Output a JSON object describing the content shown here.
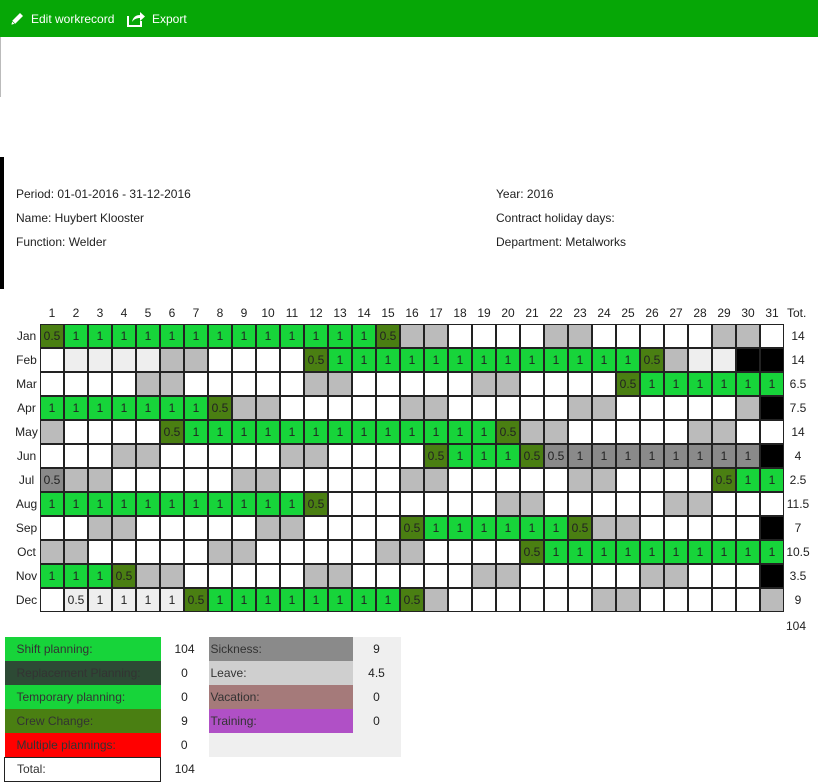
{
  "toolbar": {
    "edit_label": "Edit workrecord",
    "export_label": "Export",
    "background": "#06a706"
  },
  "info": {
    "period": "Period: 01-01-2016 - 31-12-2016",
    "name": "Name: Huybert Klooster",
    "function": "Function: Welder",
    "year": "Year: 2016",
    "contract_days": "Contract holiday days:",
    "department": "Department: Metalworks"
  },
  "calendar": {
    "total_header": "Tot.",
    "days": [
      "1",
      "2",
      "3",
      "4",
      "5",
      "6",
      "7",
      "8",
      "9",
      "10",
      "11",
      "12",
      "13",
      "14",
      "15",
      "16",
      "17",
      "18",
      "19",
      "20",
      "21",
      "22",
      "23",
      "24",
      "25",
      "26",
      "27",
      "28",
      "29",
      "30",
      "31"
    ],
    "legend_codes": {
      "w": "empty",
      "l": "light grey",
      "g": "weekend grey",
      "G": "shift planning",
      "D": "crew change",
      "K": "sickness",
      "B": "unavailable"
    },
    "months": [
      {
        "name": "Jan",
        "total": "14",
        "cells": [
          "D",
          "G",
          "G",
          "G",
          "G",
          "G",
          "G",
          "G",
          "G",
          "G",
          "G",
          "G",
          "G",
          "G",
          "D",
          "g",
          "g",
          "w",
          "w",
          "w",
          "w",
          "g",
          "g",
          "w",
          "w",
          "w",
          "w",
          "w",
          "g",
          "g",
          "w"
        ],
        "values": [
          "0.5",
          "1",
          "1",
          "1",
          "1",
          "1",
          "1",
          "1",
          "1",
          "1",
          "1",
          "1",
          "1",
          "1",
          "0.5",
          "",
          "",
          "",
          "",
          "",
          "",
          "",
          "",
          "",
          "",
          "",
          "",
          "",
          "",
          "",
          ""
        ]
      },
      {
        "name": "Feb",
        "total": "14",
        "cells": [
          "w",
          "l",
          "l",
          "l",
          "l",
          "g",
          "g",
          "w",
          "w",
          "w",
          "w",
          "D",
          "G",
          "G",
          "G",
          "G",
          "G",
          "G",
          "G",
          "G",
          "G",
          "G",
          "G",
          "G",
          "G",
          "D",
          "g",
          "l",
          "l",
          "B",
          "B"
        ],
        "values": [
          "",
          "",
          "",
          "",
          "",
          "",
          "",
          "",
          "",
          "",
          "",
          "0.5",
          "1",
          "1",
          "1",
          "1",
          "1",
          "1",
          "1",
          "1",
          "1",
          "1",
          "1",
          "1",
          "1",
          "0.5",
          "",
          "",
          "",
          "",
          ""
        ]
      },
      {
        "name": "Mar",
        "total": "6.5",
        "cells": [
          "w",
          "w",
          "w",
          "w",
          "g",
          "g",
          "w",
          "w",
          "w",
          "w",
          "w",
          "g",
          "g",
          "w",
          "w",
          "w",
          "w",
          "w",
          "g",
          "g",
          "w",
          "w",
          "w",
          "w",
          "D",
          "G",
          "G",
          "G",
          "G",
          "G",
          "G"
        ],
        "values": [
          "",
          "",
          "",
          "",
          "",
          "",
          "",
          "",
          "",
          "",
          "",
          "",
          "",
          "",
          "",
          "",
          "",
          "",
          "",
          "",
          "",
          "",
          "",
          "",
          "0.5",
          "1",
          "1",
          "1",
          "1",
          "1",
          "1"
        ]
      },
      {
        "name": "Apr",
        "total": "7.5",
        "cells": [
          "G",
          "G",
          "G",
          "G",
          "G",
          "G",
          "G",
          "D",
          "g",
          "g",
          "w",
          "w",
          "w",
          "w",
          "w",
          "g",
          "g",
          "w",
          "w",
          "w",
          "w",
          "w",
          "g",
          "g",
          "w",
          "w",
          "w",
          "w",
          "w",
          "g",
          "B"
        ],
        "values": [
          "1",
          "1",
          "1",
          "1",
          "1",
          "1",
          "1",
          "0.5",
          "",
          "",
          "",
          "",
          "",
          "",
          "",
          "",
          "",
          "",
          "",
          "",
          "",
          "",
          "",
          "",
          "",
          "",
          "",
          "",
          "",
          "",
          ""
        ]
      },
      {
        "name": "May",
        "total": "14",
        "cells": [
          "g",
          "w",
          "w",
          "w",
          "w",
          "D",
          "G",
          "G",
          "G",
          "G",
          "G",
          "G",
          "G",
          "G",
          "G",
          "G",
          "G",
          "G",
          "G",
          "D",
          "g",
          "g",
          "w",
          "w",
          "w",
          "w",
          "w",
          "g",
          "g",
          "w",
          "w"
        ],
        "values": [
          "",
          "",
          "",
          "",
          "",
          "0.5",
          "1",
          "1",
          "1",
          "1",
          "1",
          "1",
          "1",
          "1",
          "1",
          "1",
          "1",
          "1",
          "1",
          "0.5",
          "",
          "",
          "",
          "",
          "",
          "",
          "",
          "",
          "",
          "",
          ""
        ]
      },
      {
        "name": "Jun",
        "total": "4",
        "cells": [
          "w",
          "w",
          "w",
          "g",
          "g",
          "w",
          "w",
          "w",
          "w",
          "w",
          "g",
          "g",
          "w",
          "w",
          "w",
          "w",
          "D",
          "G",
          "G",
          "G",
          "D",
          "K",
          "K",
          "K",
          "K",
          "K",
          "K",
          "K",
          "K",
          "K",
          "B"
        ],
        "values": [
          "",
          "",
          "",
          "",
          "",
          "",
          "",
          "",
          "",
          "",
          "",
          "",
          "",
          "",
          "",
          "",
          "0.5",
          "1",
          "1",
          "1",
          "0.5",
          "0.5",
          "1",
          "1",
          "1",
          "1",
          "1",
          "1",
          "1",
          "1",
          ""
        ]
      },
      {
        "name": "Jul",
        "total": "2.5",
        "cells": [
          "K",
          "g",
          "g",
          "w",
          "w",
          "w",
          "w",
          "w",
          "g",
          "g",
          "w",
          "w",
          "w",
          "w",
          "w",
          "g",
          "g",
          "w",
          "w",
          "w",
          "w",
          "w",
          "g",
          "g",
          "w",
          "w",
          "w",
          "w",
          "D",
          "G",
          "G"
        ],
        "values": [
          "0.5",
          "",
          "",
          "",
          "",
          "",
          "",
          "",
          "",
          "",
          "",
          "",
          "",
          "",
          "",
          "",
          "",
          "",
          "",
          "",
          "",
          "",
          "",
          "",
          "",
          "",
          "",
          "",
          "0.5",
          "1",
          "1"
        ]
      },
      {
        "name": "Aug",
        "total": "11.5",
        "cells": [
          "G",
          "G",
          "G",
          "G",
          "G",
          "G",
          "G",
          "G",
          "G",
          "G",
          "G",
          "D",
          "w",
          "w",
          "w",
          "w",
          "w",
          "w",
          "w",
          "g",
          "g",
          "w",
          "w",
          "w",
          "w",
          "w",
          "g",
          "g",
          "w",
          "w",
          "w"
        ],
        "values": [
          "1",
          "1",
          "1",
          "1",
          "1",
          "1",
          "1",
          "1",
          "1",
          "1",
          "1",
          "0.5",
          "",
          "",
          "",
          "",
          "",
          "",
          "",
          "",
          "",
          "",
          "",
          "",
          "",
          "",
          "",
          "",
          "",
          "",
          ""
        ]
      },
      {
        "name": "Sep",
        "total": "7",
        "cells": [
          "w",
          "w",
          "g",
          "g",
          "w",
          "w",
          "w",
          "w",
          "w",
          "g",
          "g",
          "w",
          "w",
          "w",
          "w",
          "D",
          "G",
          "G",
          "G",
          "G",
          "G",
          "G",
          "D",
          "g",
          "g",
          "w",
          "w",
          "w",
          "w",
          "w",
          "B"
        ],
        "values": [
          "",
          "",
          "",
          "",
          "",
          "",
          "",
          "",
          "",
          "",
          "",
          "",
          "",
          "",
          "",
          "0.5",
          "1",
          "1",
          "1",
          "1",
          "1",
          "1",
          "0.5",
          "",
          "",
          "",
          "",
          "",
          "",
          "",
          ""
        ]
      },
      {
        "name": "Oct",
        "total": "10.5",
        "cells": [
          "g",
          "g",
          "w",
          "w",
          "w",
          "w",
          "w",
          "g",
          "g",
          "w",
          "w",
          "w",
          "w",
          "w",
          "g",
          "g",
          "w",
          "w",
          "w",
          "w",
          "D",
          "G",
          "G",
          "G",
          "G",
          "G",
          "G",
          "G",
          "G",
          "G",
          "G"
        ],
        "values": [
          "",
          "",
          "",
          "",
          "",
          "",
          "",
          "",
          "",
          "",
          "",
          "",
          "",
          "",
          "",
          "",
          "",
          "",
          "",
          "",
          "0.5",
          "1",
          "1",
          "1",
          "1",
          "1",
          "1",
          "1",
          "1",
          "1",
          "1"
        ]
      },
      {
        "name": "Nov",
        "total": "3.5",
        "cells": [
          "G",
          "G",
          "G",
          "D",
          "g",
          "g",
          "w",
          "w",
          "w",
          "w",
          "w",
          "g",
          "g",
          "w",
          "w",
          "w",
          "w",
          "w",
          "g",
          "g",
          "w",
          "w",
          "w",
          "w",
          "w",
          "g",
          "g",
          "w",
          "w",
          "w",
          "B"
        ],
        "values": [
          "1",
          "1",
          "1",
          "0.5",
          "",
          "",
          "",
          "",
          "",
          "",
          "",
          "",
          "",
          "",
          "",
          "",
          "",
          "",
          "",
          "",
          "",
          "",
          "",
          "",
          "",
          "",
          "",
          "",
          "",
          "",
          ""
        ]
      },
      {
        "name": "Dec",
        "total": "9",
        "cells": [
          "w",
          "l",
          "l",
          "l",
          "l",
          "l",
          "D",
          "G",
          "G",
          "G",
          "G",
          "G",
          "G",
          "G",
          "G",
          "D",
          "g",
          "w",
          "w",
          "w",
          "w",
          "w",
          "w",
          "g",
          "g",
          "w",
          "w",
          "w",
          "w",
          "w",
          "g"
        ],
        "values": [
          "",
          "0.5",
          "1",
          "1",
          "1",
          "1",
          "0.5",
          "1",
          "1",
          "1",
          "1",
          "1",
          "1",
          "1",
          "1",
          "0.5",
          "",
          "",
          "",
          "",
          "",
          "",
          "",
          "",
          "",
          "",
          "",
          "",
          "",
          "",
          ""
        ]
      }
    ],
    "year_total": "104"
  },
  "legend": {
    "rows": [
      {
        "label": "Shift planning:",
        "value": "104",
        "color": "#17d43a",
        "label2": "Sickness:",
        "value2": "9",
        "color2": "#8a8a8a"
      },
      {
        "label": "Replacement Planning:",
        "value": "0",
        "color": "#2d4a35",
        "label2": "Leave:",
        "value2": "4.5",
        "color2": "#cfcfcf"
      },
      {
        "label": "Temporary planning:",
        "value": "0",
        "color": "#17d43a",
        "label2": "Vacation:",
        "value2": "0",
        "color2": "#a57a7a"
      },
      {
        "label": "Crew Change:",
        "value": "9",
        "color": "#4a7f12",
        "label2": "Training:",
        "value2": "0",
        "color2": "#b050c6"
      },
      {
        "label": "Multiple plannings:",
        "value": "0",
        "color": "#ff0000",
        "label2": "",
        "value2": "",
        "color2": "#efefef"
      }
    ],
    "total_label": "Total:",
    "total_value": "104"
  }
}
